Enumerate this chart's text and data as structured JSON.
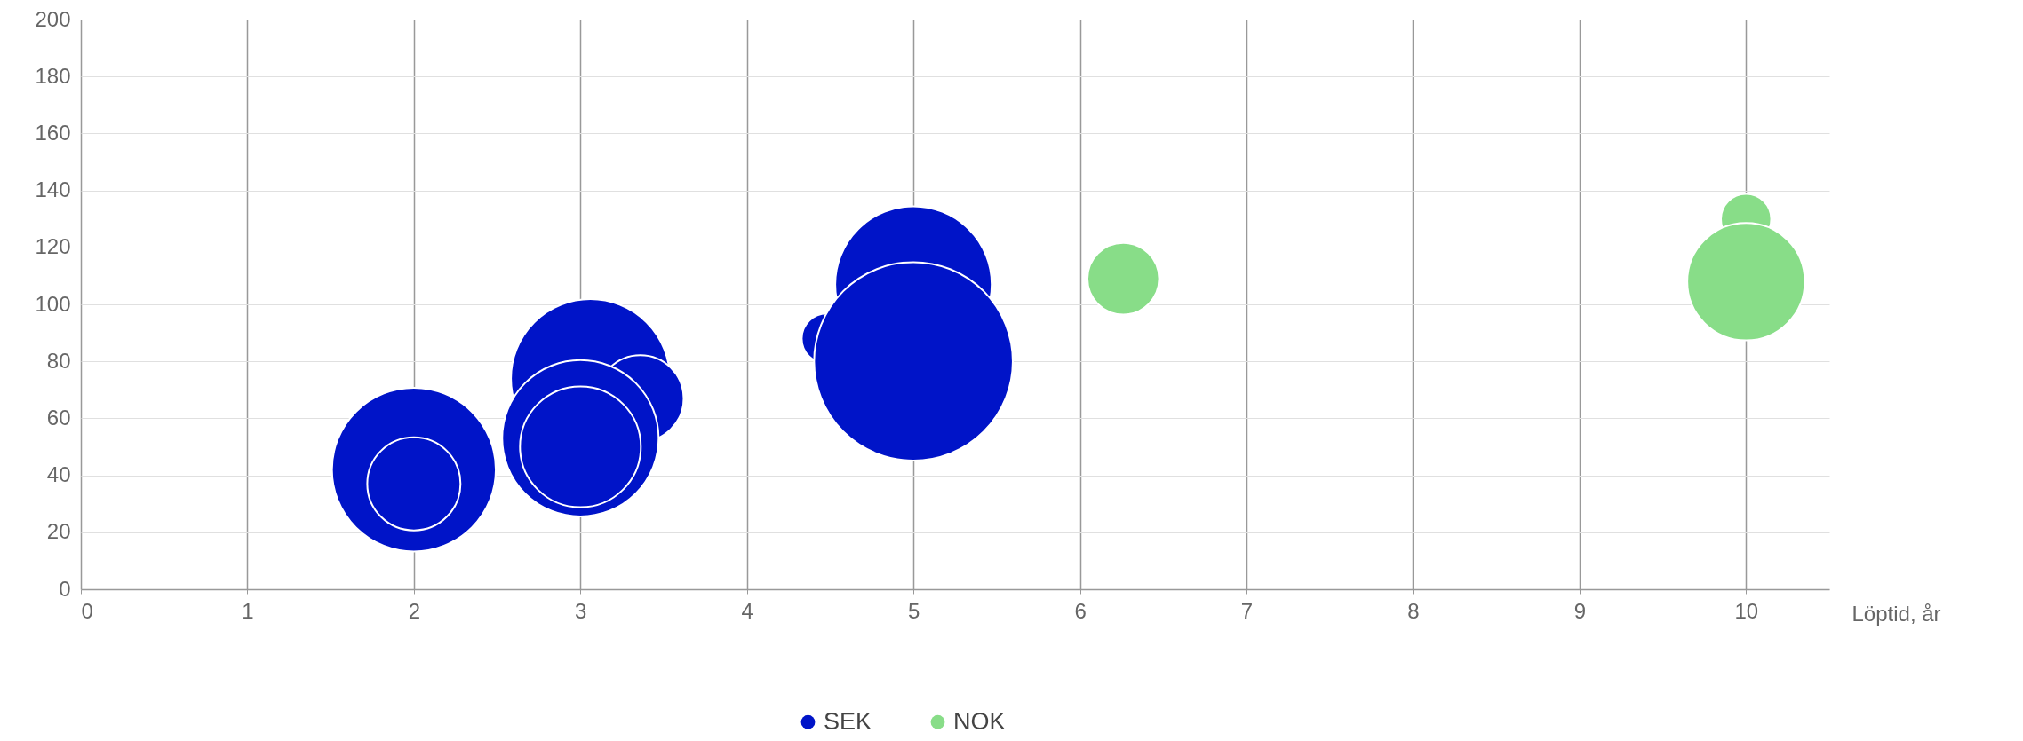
{
  "chart_data": {
    "type": "bubble",
    "xlabel": "Löptid, år",
    "xlim": [
      0,
      10.5
    ],
    "xticks": [
      0,
      1,
      2,
      3,
      4,
      5,
      6,
      7,
      8,
      9,
      10
    ],
    "ylim": [
      0,
      200
    ],
    "yticks": [
      0,
      20,
      40,
      60,
      80,
      100,
      120,
      140,
      160,
      180,
      200
    ],
    "grid": true,
    "legend": "bottom",
    "series": [
      {
        "name": "SEK",
        "color": "#0014c8",
        "x": [
          2,
          2,
          3.06,
          3.36,
          3,
          3,
          4.48,
          5,
          5
        ],
        "values": [
          42,
          37,
          74,
          67,
          53,
          50,
          88,
          107,
          80
        ],
        "sizes": [
          0.68,
          0.22,
          0.64,
          0.19,
          0.62,
          0.37,
          0.064,
          0.62,
          1
        ]
      },
      {
        "name": "NOK",
        "color": "#88dd88",
        "x": [
          6.26,
          10,
          10
        ],
        "values": [
          109,
          130,
          108
        ],
        "sizes": [
          0.13,
          0.064,
          0.35
        ]
      }
    ]
  }
}
